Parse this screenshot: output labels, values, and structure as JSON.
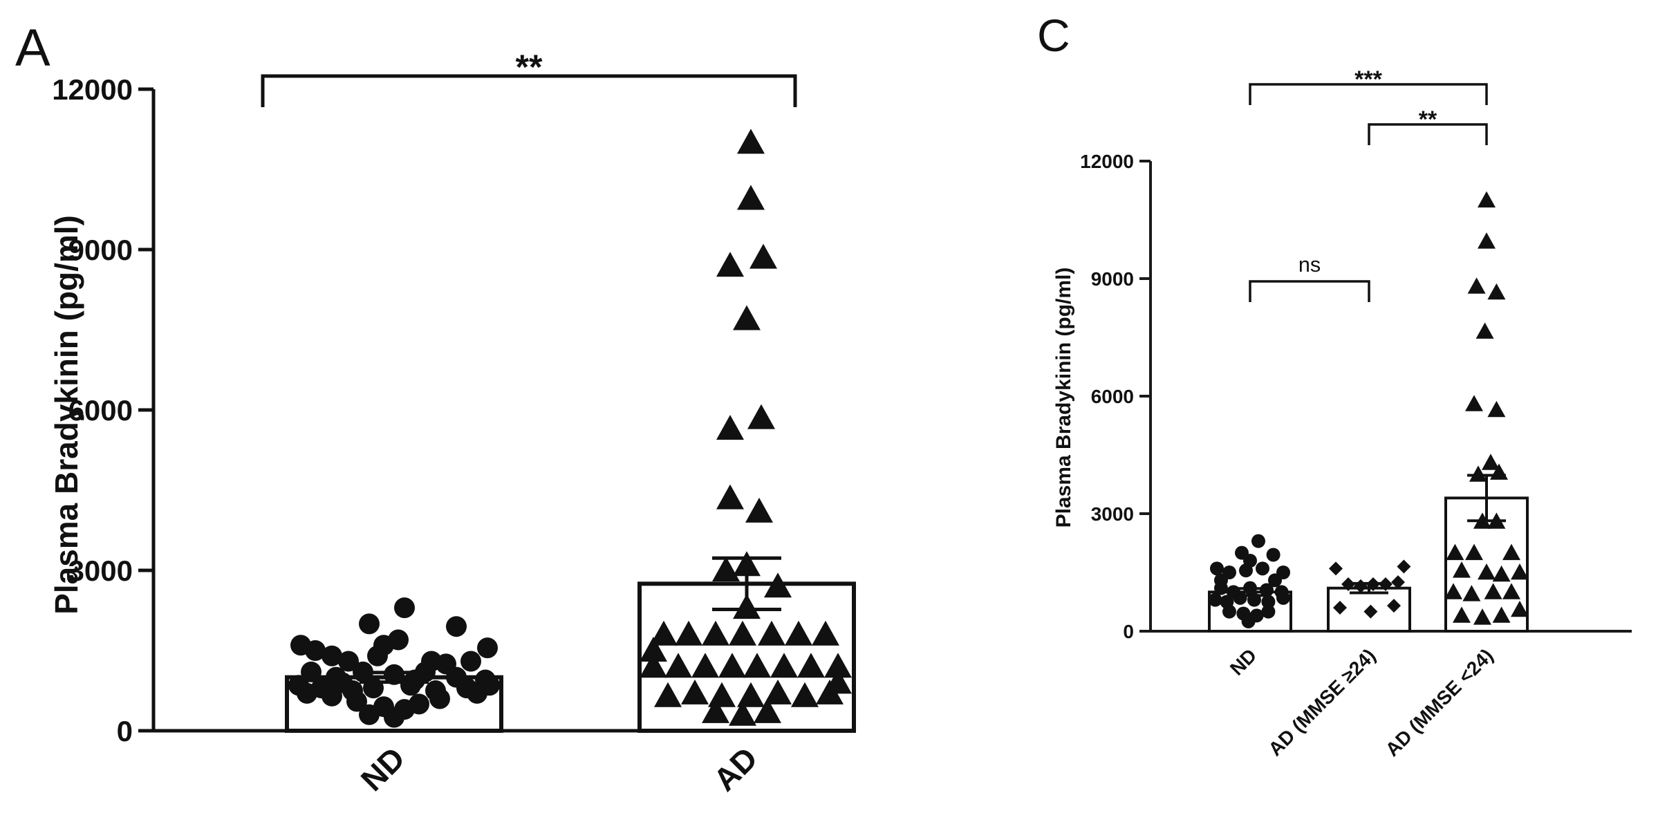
{
  "chart_data": [
    {
      "panel_label": "A",
      "type": "scatter",
      "ylabel": "Plasma Bradykinin (pg/ml)",
      "xlabel": "",
      "ylim": [
        0,
        12000
      ],
      "yticks": [
        0,
        3000,
        6000,
        9000,
        12000
      ],
      "ytick_labels": [
        "0",
        "3000",
        "6000",
        "9000",
        "12000"
      ],
      "categories": [
        "ND",
        "AD"
      ],
      "bars": [
        {
          "category": "ND",
          "mean": 1000,
          "sem": 90
        },
        {
          "category": "AD",
          "mean": 2750,
          "sem": 480
        }
      ],
      "significance": [
        {
          "from": "ND",
          "to": "AD",
          "label": "**"
        }
      ],
      "series": [
        {
          "category": "ND",
          "marker": "circle",
          "points": [
            {
              "x": -0.45,
              "y": 1600
            },
            {
              "x": -0.38,
              "y": 1500
            },
            {
              "x": -0.3,
              "y": 1400
            },
            {
              "x": -0.22,
              "y": 1300
            },
            {
              "x": -0.12,
              "y": 2000
            },
            {
              "x": 0.05,
              "y": 2300
            },
            {
              "x": 0.02,
              "y": 1700
            },
            {
              "x": -0.05,
              "y": 1600
            },
            {
              "x": 0.3,
              "y": 1950
            },
            {
              "x": 0.45,
              "y": 1550
            },
            {
              "x": 0.37,
              "y": 1300
            },
            {
              "x": 0.25,
              "y": 1250
            },
            {
              "x": -0.4,
              "y": 1100
            },
            {
              "x": -0.28,
              "y": 1000
            },
            {
              "x": -0.15,
              "y": 1100
            },
            {
              "x": 0.0,
              "y": 1050
            },
            {
              "x": 0.15,
              "y": 1100
            },
            {
              "x": 0.3,
              "y": 1000
            },
            {
              "x": 0.44,
              "y": 950
            },
            {
              "x": -0.46,
              "y": 850
            },
            {
              "x": -0.35,
              "y": 800
            },
            {
              "x": -0.2,
              "y": 750
            },
            {
              "x": -0.1,
              "y": 800
            },
            {
              "x": 0.08,
              "y": 850
            },
            {
              "x": 0.2,
              "y": 750
            },
            {
              "x": 0.35,
              "y": 800
            },
            {
              "x": 0.46,
              "y": 850
            },
            {
              "x": -0.3,
              "y": 650
            },
            {
              "x": -0.18,
              "y": 550
            },
            {
              "x": -0.05,
              "y": 450
            },
            {
              "x": 0.05,
              "y": 400
            },
            {
              "x": 0.12,
              "y": 500
            },
            {
              "x": 0.22,
              "y": 600
            },
            {
              "x": -0.12,
              "y": 300
            },
            {
              "x": 0.0,
              "y": 250
            },
            {
              "x": -0.42,
              "y": 700
            },
            {
              "x": 0.4,
              "y": 700
            },
            {
              "x": -0.25,
              "y": 900
            },
            {
              "x": 0.1,
              "y": 950
            },
            {
              "x": -0.08,
              "y": 1400
            },
            {
              "x": 0.18,
              "y": 1300
            }
          ]
        },
        {
          "category": "AD",
          "marker": "triangle",
          "points": [
            {
              "x": 0.02,
              "y": 11000
            },
            {
              "x": 0.02,
              "y": 9950
            },
            {
              "x": -0.08,
              "y": 8700
            },
            {
              "x": 0.08,
              "y": 8850
            },
            {
              "x": 0.0,
              "y": 7700
            },
            {
              "x": -0.08,
              "y": 5650
            },
            {
              "x": 0.07,
              "y": 5850
            },
            {
              "x": -0.08,
              "y": 4350
            },
            {
              "x": 0.06,
              "y": 4100
            },
            {
              "x": -0.1,
              "y": 3000
            },
            {
              "x": 0.0,
              "y": 3100
            },
            {
              "x": 0.15,
              "y": 2700
            },
            {
              "x": 0.0,
              "y": 2300
            },
            {
              "x": -0.4,
              "y": 1800
            },
            {
              "x": -0.28,
              "y": 1800
            },
            {
              "x": -0.15,
              "y": 1800
            },
            {
              "x": -0.02,
              "y": 1800
            },
            {
              "x": 0.12,
              "y": 1800
            },
            {
              "x": 0.25,
              "y": 1800
            },
            {
              "x": 0.38,
              "y": 1800
            },
            {
              "x": -0.45,
              "y": 1200
            },
            {
              "x": -0.33,
              "y": 1200
            },
            {
              "x": -0.2,
              "y": 1200
            },
            {
              "x": -0.07,
              "y": 1200
            },
            {
              "x": 0.05,
              "y": 1200
            },
            {
              "x": 0.18,
              "y": 1200
            },
            {
              "x": 0.31,
              "y": 1200
            },
            {
              "x": 0.44,
              "y": 1200
            },
            {
              "x": -0.38,
              "y": 650
            },
            {
              "x": -0.25,
              "y": 700
            },
            {
              "x": -0.12,
              "y": 650
            },
            {
              "x": 0.02,
              "y": 650
            },
            {
              "x": 0.15,
              "y": 700
            },
            {
              "x": 0.28,
              "y": 650
            },
            {
              "x": 0.4,
              "y": 700
            },
            {
              "x": -0.15,
              "y": 350
            },
            {
              "x": -0.02,
              "y": 300
            },
            {
              "x": 0.1,
              "y": 350
            },
            {
              "x": 0.44,
              "y": 900
            },
            {
              "x": -0.45,
              "y": 1500
            }
          ]
        }
      ]
    },
    {
      "panel_label": "C",
      "type": "scatter",
      "ylabel": "Plasma Bradykinin (pg/ml)",
      "xlabel": "",
      "ylim": [
        0,
        12000
      ],
      "yticks": [
        0,
        3000,
        6000,
        9000,
        12000
      ],
      "ytick_labels": [
        "0",
        "3000",
        "6000",
        "9000",
        "12000"
      ],
      "categories": [
        "ND",
        "AD (MMSE ≥24)",
        "AD (MMSE <24)"
      ],
      "bars": [
        {
          "category": "ND",
          "mean": 1000,
          "sem": 90
        },
        {
          "category": "AD (MMSE ≥24)",
          "mean": 1100,
          "sem": 120
        },
        {
          "category": "AD (MMSE <24)",
          "mean": 3400,
          "sem": 580
        }
      ],
      "significance": [
        {
          "from": "ND",
          "to": "AD (MMSE <24)",
          "label": "***"
        },
        {
          "from": "AD (MMSE ≥24)",
          "to": "AD (MMSE <24)",
          "label": "**"
        },
        {
          "from": "ND",
          "to": "AD (MMSE ≥24)",
          "label": "ns"
        }
      ],
      "series": [
        {
          "category": "ND",
          "marker": "circle",
          "points": [
            {
              "x": -0.4,
              "y": 1600
            },
            {
              "x": -0.25,
              "y": 1500
            },
            {
              "x": -0.1,
              "y": 2000
            },
            {
              "x": 0.1,
              "y": 2300
            },
            {
              "x": 0.28,
              "y": 1950
            },
            {
              "x": 0.4,
              "y": 1500
            },
            {
              "x": 0.15,
              "y": 1600
            },
            {
              "x": -0.05,
              "y": 1550
            },
            {
              "x": -0.35,
              "y": 1100
            },
            {
              "x": -0.2,
              "y": 1000
            },
            {
              "x": 0.0,
              "y": 1100
            },
            {
              "x": 0.2,
              "y": 1050
            },
            {
              "x": 0.38,
              "y": 1000
            },
            {
              "x": -0.42,
              "y": 800
            },
            {
              "x": -0.28,
              "y": 750
            },
            {
              "x": -0.12,
              "y": 850
            },
            {
              "x": 0.05,
              "y": 800
            },
            {
              "x": 0.22,
              "y": 750
            },
            {
              "x": 0.4,
              "y": 850
            },
            {
              "x": -0.25,
              "y": 500
            },
            {
              "x": -0.08,
              "y": 450
            },
            {
              "x": 0.08,
              "y": 400
            },
            {
              "x": 0.22,
              "y": 500
            },
            {
              "x": -0.02,
              "y": 250
            },
            {
              "x": -0.35,
              "y": 1300
            },
            {
              "x": 0.3,
              "y": 1300
            },
            {
              "x": 0.0,
              "y": 1800
            }
          ]
        },
        {
          "category": "AD (MMSE ≥24)",
          "marker": "diamond",
          "points": [
            {
              "x": -0.4,
              "y": 1600
            },
            {
              "x": 0.42,
              "y": 1650
            },
            {
              "x": -0.25,
              "y": 1200
            },
            {
              "x": -0.1,
              "y": 1150
            },
            {
              "x": 0.05,
              "y": 1200
            },
            {
              "x": 0.2,
              "y": 1200
            },
            {
              "x": 0.35,
              "y": 1250
            },
            {
              "x": -0.35,
              "y": 600
            },
            {
              "x": 0.02,
              "y": 500
            },
            {
              "x": 0.3,
              "y": 650
            }
          ]
        },
        {
          "category": "AD (MMSE <24)",
          "marker": "triangle",
          "points": [
            {
              "x": 0.0,
              "y": 11000
            },
            {
              "x": 0.0,
              "y": 9950
            },
            {
              "x": -0.12,
              "y": 8800
            },
            {
              "x": 0.12,
              "y": 8650
            },
            {
              "x": -0.02,
              "y": 7650
            },
            {
              "x": -0.15,
              "y": 5800
            },
            {
              "x": 0.12,
              "y": 5650
            },
            {
              "x": 0.05,
              "y": 4300
            },
            {
              "x": -0.1,
              "y": 4000
            },
            {
              "x": 0.15,
              "y": 4050
            },
            {
              "x": -0.05,
              "y": 2800
            },
            {
              "x": 0.12,
              "y": 2800
            },
            {
              "x": -0.38,
              "y": 2000
            },
            {
              "x": -0.15,
              "y": 2000
            },
            {
              "x": 0.3,
              "y": 2000
            },
            {
              "x": -0.3,
              "y": 1550
            },
            {
              "x": 0.0,
              "y": 1500
            },
            {
              "x": 0.18,
              "y": 1450
            },
            {
              "x": 0.4,
              "y": 1500
            },
            {
              "x": -0.4,
              "y": 1000
            },
            {
              "x": -0.18,
              "y": 950
            },
            {
              "x": 0.08,
              "y": 1000
            },
            {
              "x": 0.3,
              "y": 1000
            },
            {
              "x": -0.3,
              "y": 400
            },
            {
              "x": -0.05,
              "y": 350
            },
            {
              "x": 0.18,
              "y": 400
            },
            {
              "x": 0.4,
              "y": 550
            }
          ]
        }
      ]
    }
  ]
}
